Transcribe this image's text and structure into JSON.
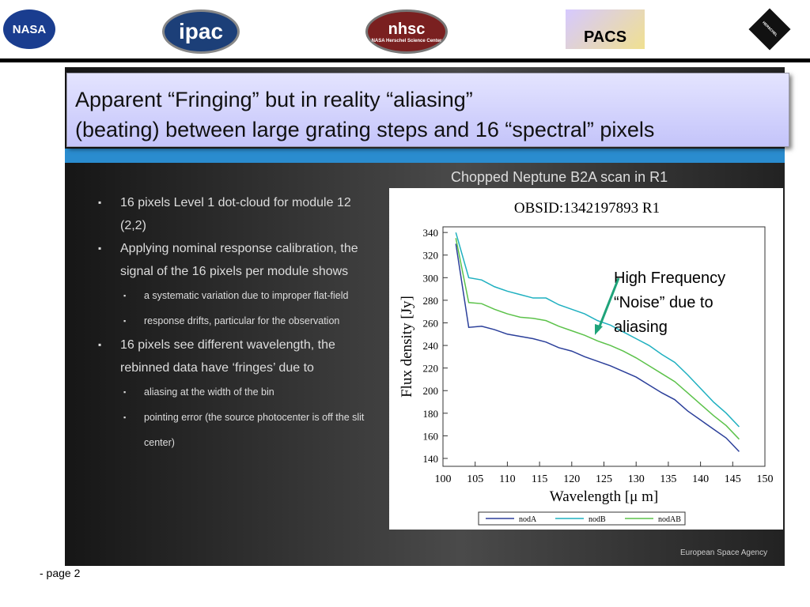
{
  "header": {
    "logos": [
      "NASA",
      "ipac",
      "nhsc",
      "NASA Herschel Science Center",
      "PACS",
      "HERSCHEL"
    ]
  },
  "slide": {
    "title_lines": [
      "Apparent “Fringing” but in reality “aliasing”",
      "(beating) between large grating steps and 16 “spectral” pixels"
    ],
    "caption": "Chopped Neptune B2A scan in R1",
    "bullets": [
      {
        "text": "16 pixels Level 1 dot-cloud for module 12 (2,2)",
        "sub": []
      },
      {
        "text": "Applying nominal response calibration, the signal of the 16 pixels per module shows",
        "sub": [
          "a systematic variation due to improper flat-field",
          "response drifts, particular for the observation"
        ]
      },
      {
        "text": "16 pixels see different wavelength, the rebinned data have ‘fringes’ due to",
        "sub": [
          "aliasing at the width of the bin",
          "pointing error (the source photocenter is off the slit center)"
        ]
      }
    ],
    "annotation": [
      "High Frequency",
      "“Noise” due to",
      "aliasing"
    ],
    "credit": "European Space Agency"
  },
  "chart_data": {
    "type": "line",
    "title": "OBSID:1342197893 R1",
    "x_label": "Wavelength [μ m]",
    "y_label": "Flux density [Jy]",
    "x": [
      102,
      104,
      106,
      108,
      110,
      112,
      114,
      116,
      118,
      120,
      122,
      124,
      126,
      128,
      130,
      132,
      134,
      136,
      138,
      140,
      142,
      144,
      146
    ],
    "series": [
      {
        "name": "nodA",
        "color": "#2b3f9a",
        "values": [
          330,
          256,
          257,
          254,
          250,
          248,
          246,
          243,
          238,
          235,
          230,
          226,
          222,
          217,
          212,
          205,
          198,
          192,
          182,
          174,
          166,
          158,
          146
        ]
      },
      {
        "name": "nodB",
        "color": "#1fb0c0",
        "values": [
          340,
          300,
          298,
          292,
          288,
          285,
          282,
          282,
          276,
          272,
          268,
          262,
          258,
          252,
          246,
          240,
          232,
          225,
          214,
          202,
          190,
          180,
          168
        ]
      },
      {
        "name": "nodAB",
        "color": "#5cc24a",
        "values": [
          335,
          278,
          277,
          272,
          268,
          265,
          264,
          262,
          257,
          253,
          249,
          244,
          240,
          235,
          229,
          222,
          215,
          208,
          198,
          188,
          178,
          169,
          157
        ]
      }
    ],
    "xlim": [
      100,
      150
    ],
    "xticks": [
      100,
      105,
      110,
      115,
      120,
      125,
      130,
      135,
      140,
      145,
      150
    ],
    "ylim": [
      133,
      345
    ],
    "yticks": [
      140,
      160,
      180,
      200,
      220,
      240,
      260,
      280,
      300,
      320,
      340
    ]
  },
  "footer": {
    "page": "- page 2"
  }
}
